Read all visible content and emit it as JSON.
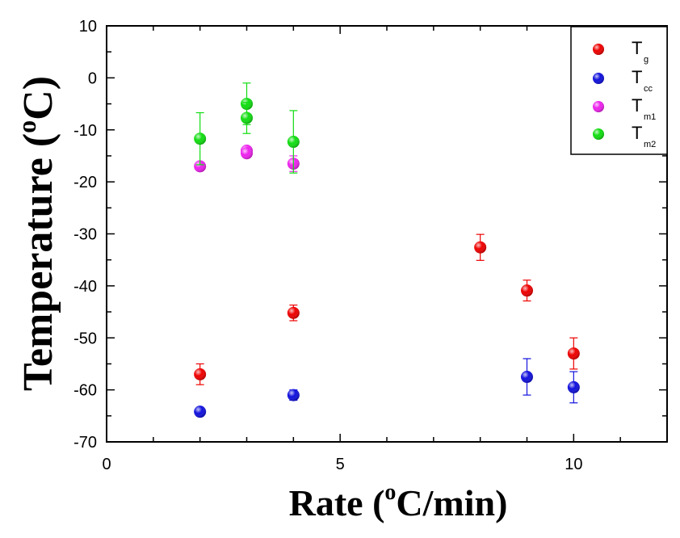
{
  "chart_data": {
    "type": "scatter",
    "xlabel": {
      "pre": "Rate  (",
      "sup": "o",
      "post": "C/min)"
    },
    "ylabel": {
      "pre": "Temperature (",
      "sup": "o",
      "post": "C)"
    },
    "xlim": [
      0,
      12
    ],
    "ylim": [
      -70,
      10
    ],
    "xticks": [
      0,
      5,
      10
    ],
    "yticks": [
      10,
      0,
      -10,
      -20,
      -30,
      -40,
      -50,
      -60,
      -70
    ],
    "legend_position": "top-right",
    "series": [
      {
        "name": "T",
        "sub": "g",
        "color": "#ee0000",
        "points": [
          {
            "x": 2,
            "y": -57,
            "err": 2
          },
          {
            "x": 4,
            "y": -45.2,
            "err": 1.5
          },
          {
            "x": 8,
            "y": -32.6,
            "err": 2.5
          },
          {
            "x": 9,
            "y": -40.9,
            "err": 2
          },
          {
            "x": 10,
            "y": -53,
            "err": 3
          }
        ]
      },
      {
        "name": "T",
        "sub": "cc",
        "color": "#1111dd",
        "points": [
          {
            "x": 2,
            "y": -64.2,
            "err": 0
          },
          {
            "x": 4,
            "y": -61,
            "err": 1
          },
          {
            "x": 9,
            "y": -57.5,
            "err": 3.5
          },
          {
            "x": 10,
            "y": -59.5,
            "err": 3
          }
        ]
      },
      {
        "name": "T",
        "sub": "m1",
        "color": "#ee22ee",
        "points": [
          {
            "x": 2,
            "y": -17,
            "err": 0
          },
          {
            "x": 3,
            "y": -14,
            "err": 0
          },
          {
            "x": 3,
            "y": -14.5,
            "err": 0
          },
          {
            "x": 4,
            "y": -16.5,
            "err": 1.5
          }
        ]
      },
      {
        "name": "T",
        "sub": "m2",
        "color": "#11dd11",
        "points": [
          {
            "x": 2,
            "y": -11.7,
            "err": 5
          },
          {
            "x": 3,
            "y": -5,
            "err": 4
          },
          {
            "x": 3,
            "y": -7.7,
            "err": 3
          },
          {
            "x": 4,
            "y": -12.3,
            "err": 6
          }
        ]
      }
    ]
  }
}
